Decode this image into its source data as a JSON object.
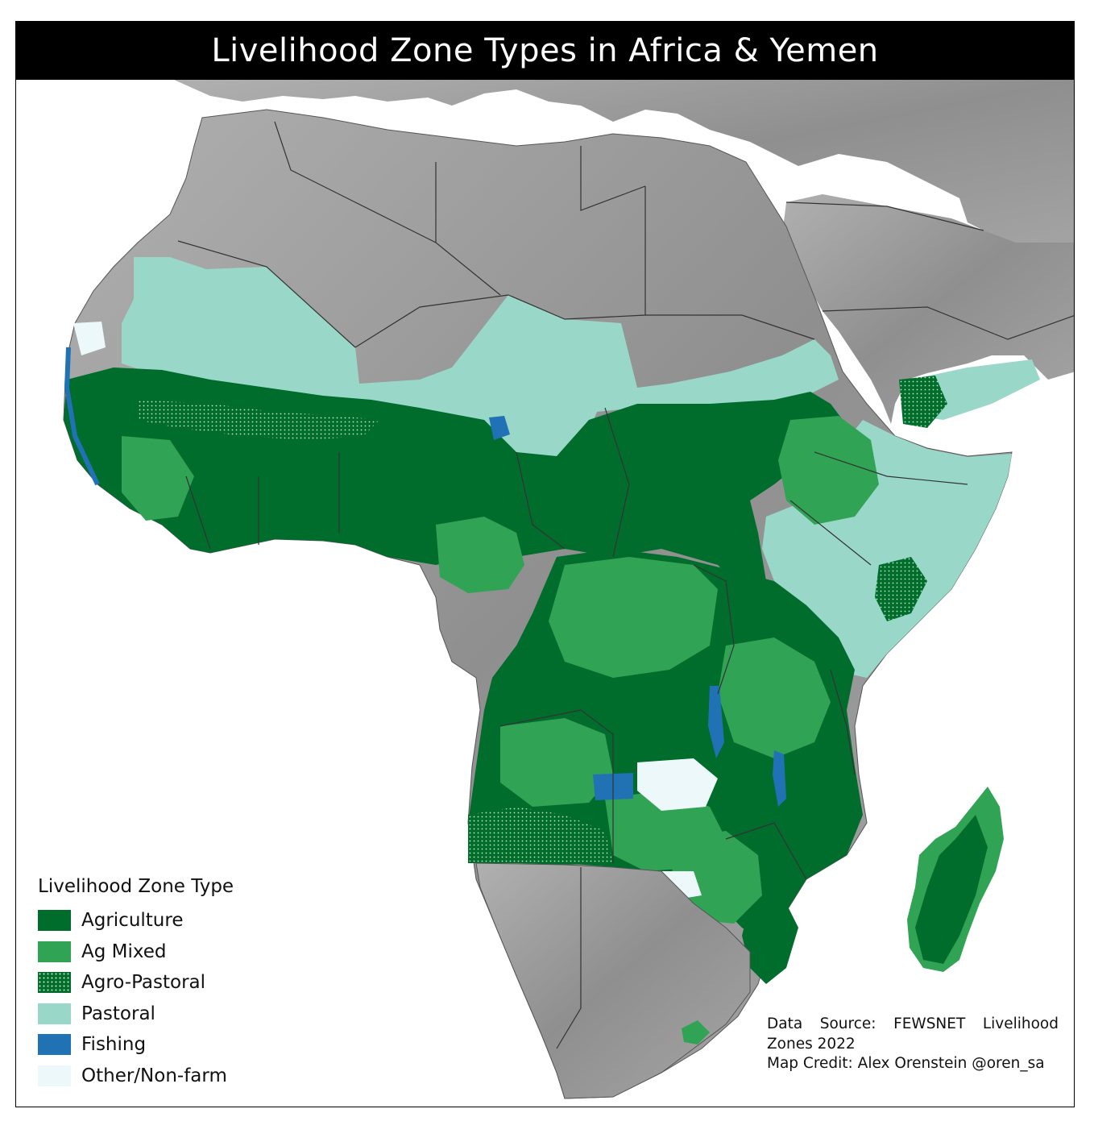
{
  "title": "Livelihood Zone Types in Africa & Yemen",
  "legend": {
    "title": "Livelihood Zone Type",
    "items": [
      {
        "label": "Agriculture",
        "color": "#006d2c",
        "pattern": "solid"
      },
      {
        "label": "Ag Mixed",
        "color": "#31a354",
        "pattern": "solid"
      },
      {
        "label": "Agro-Pastoral",
        "color": "#006d2c",
        "pattern": "dotted"
      },
      {
        "label": "Pastoral",
        "color": "#99d8c9",
        "pattern": "solid"
      },
      {
        "label": "Fishing",
        "color": "#2171b5",
        "pattern": "solid"
      },
      {
        "label": "Other/Non-farm",
        "color": "#edf8fb",
        "pattern": "solid"
      }
    ]
  },
  "credits": {
    "source": "Data Source: FEWSNET Livelihood Zones 2022",
    "map_credit": "Map Credit: Alex Orenstein @oren_sa"
  },
  "colors": {
    "land_relief": "#9a9a9a",
    "border": "#333333",
    "sea": "#ffffff"
  }
}
